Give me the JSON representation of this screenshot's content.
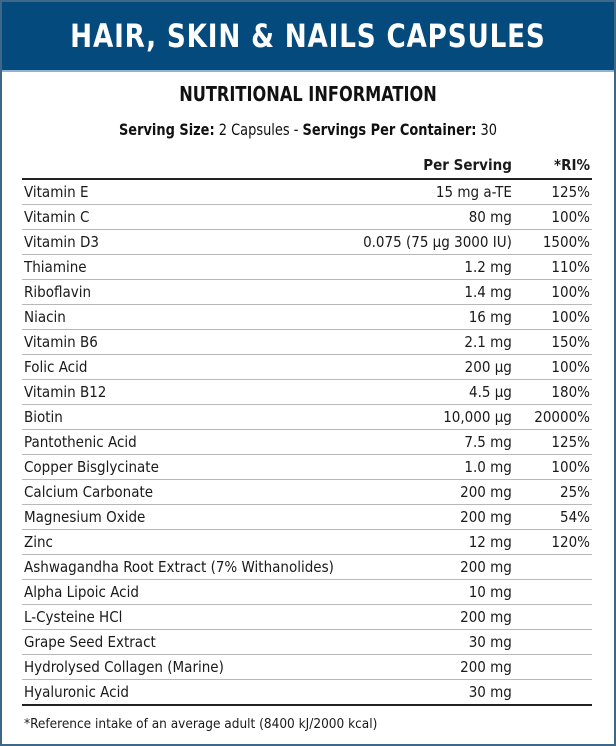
{
  "title": "HAIR, SKIN & NAILS CAPSULES",
  "subtitle": "NUTRITIONAL INFORMATION",
  "serving": {
    "size_label": "Serving Size:",
    "size_value": "2 Capsules -",
    "per_container_label": "Servings Per Container:",
    "per_container_value": "30"
  },
  "table": {
    "headers": {
      "name": "",
      "per_serving": "Per Serving",
      "ri": "*RI%"
    },
    "rows": [
      {
        "name": "Vitamin E",
        "amount": "15 mg a-TE",
        "ri": "125%"
      },
      {
        "name": "Vitamin C",
        "amount": "80 mg",
        "ri": "100%"
      },
      {
        "name": "Vitamin D3",
        "amount": "0.075 (75 µg 3000 IU)",
        "ri": "1500%"
      },
      {
        "name": "Thiamine",
        "amount": "1.2 mg",
        "ri": "110%"
      },
      {
        "name": "Riboflavin",
        "amount": "1.4 mg",
        "ri": "100%"
      },
      {
        "name": "Niacin",
        "amount": "16 mg",
        "ri": "100%"
      },
      {
        "name": "Vitamin B6",
        "amount": "2.1 mg",
        "ri": "150%"
      },
      {
        "name": "Folic Acid",
        "amount": "200 µg",
        "ri": "100%"
      },
      {
        "name": "Vitamin B12",
        "amount": "4.5 µg",
        "ri": "180%"
      },
      {
        "name": "Biotin",
        "amount": "10,000 µg",
        "ri": "20000%"
      },
      {
        "name": "Pantothenic Acid",
        "amount": "7.5 mg",
        "ri": "125%"
      },
      {
        "name": "Copper Bisglycinate",
        "amount": "1.0 mg",
        "ri": "100%"
      },
      {
        "name": "Calcium Carbonate",
        "amount": "200 mg",
        "ri": "25%"
      },
      {
        "name": "Magnesium Oxide",
        "amount": "200 mg",
        "ri": "54%"
      },
      {
        "name": "Zinc",
        "amount": "12 mg",
        "ri": "120%"
      },
      {
        "name": "Ashwagandha Root Extract (7% Withanolides)",
        "amount": "200 mg",
        "ri": ""
      },
      {
        "name": "Alpha Lipoic Acid",
        "amount": "10 mg",
        "ri": ""
      },
      {
        "name": "L-Cysteine HCl",
        "amount": "200 mg",
        "ri": ""
      },
      {
        "name": "Grape Seed Extract",
        "amount": "30 mg",
        "ri": ""
      },
      {
        "name": "Hydrolysed Collagen (Marine)",
        "amount": "200 mg",
        "ri": ""
      },
      {
        "name": "Hyaluronic Acid",
        "amount": "30 mg",
        "ri": ""
      }
    ]
  },
  "footnote": "*Reference intake of an average adult (8400 kJ/2000 kcal)",
  "colors": {
    "banner": "#044a7c",
    "frame": "#3f6788"
  }
}
